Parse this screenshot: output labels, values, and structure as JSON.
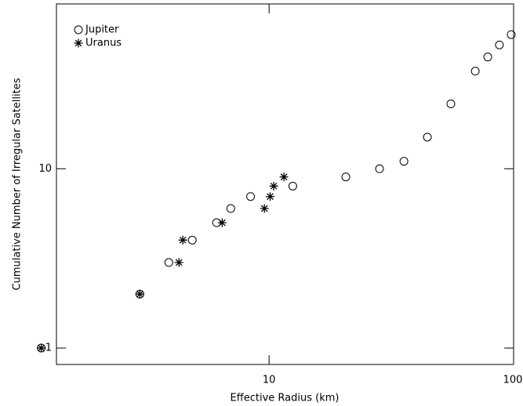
{
  "chart_data": {
    "type": "scatter",
    "x_label": "Effective Radius (km)",
    "y_label": "Cumulative Number of Irregular Satellites",
    "log_x": true,
    "log_y": true,
    "xlim": [
      1.35,
      100
    ],
    "ylim": [
      0.81,
      83
    ],
    "xticks": [
      10,
      100
    ],
    "yticks": [
      1,
      10
    ],
    "legend": "top-left",
    "series": [
      {
        "name": "Jupiter",
        "marker": "circle",
        "color": "#000000",
        "x": [
          1.17,
          2.96,
          3.89,
          4.85,
          6.1,
          6.97,
          8.4,
          12.5,
          20.6,
          28.3,
          35.6,
          44.4,
          55.4,
          69.7,
          78.4,
          87.5,
          97.8
        ],
        "values": [
          1,
          2,
          3,
          4,
          5,
          6,
          7,
          8,
          9,
          10,
          11,
          15,
          23,
          35,
          42,
          49,
          56
        ]
      },
      {
        "name": "Uranus",
        "marker": "star",
        "color": "#000000",
        "x": [
          1.17,
          2.96,
          4.28,
          4.44,
          6.43,
          9.57,
          10.1,
          10.45,
          11.5
        ],
        "values": [
          1,
          2,
          3,
          4,
          5,
          6,
          7,
          8,
          9
        ]
      }
    ]
  }
}
